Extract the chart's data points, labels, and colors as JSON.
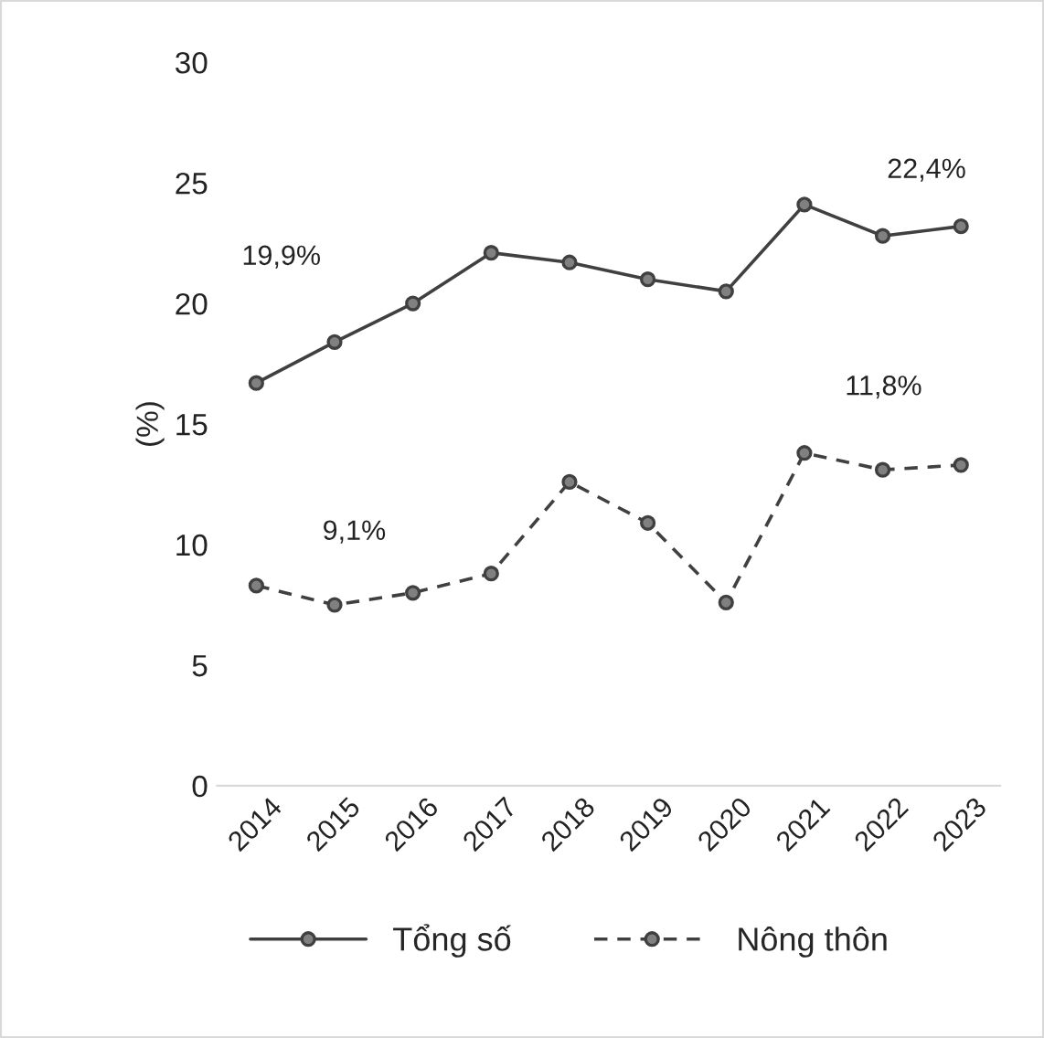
{
  "chart_data": {
    "type": "line",
    "ylabel": "(%)",
    "categories": [
      "2014",
      "2015",
      "2016",
      "2017",
      "2018",
      "2019",
      "2020",
      "2021",
      "2022",
      "2023"
    ],
    "series": [
      {
        "name": "Tổng số",
        "color": "#404040",
        "line_style": "solid",
        "values": [
          16.7,
          18.4,
          20.0,
          22.1,
          21.7,
          21.0,
          20.5,
          24.1,
          22.8,
          23.2
        ]
      },
      {
        "name": "Nông thôn",
        "color": "#404040",
        "line_style": "dashed",
        "values": [
          8.3,
          7.5,
          8.0,
          8.8,
          12.6,
          10.9,
          7.6,
          13.8,
          13.1,
          13.3
        ]
      }
    ],
    "ylim": [
      0,
      30
    ],
    "yticks": [
      0,
      5,
      10,
      15,
      20,
      25,
      30
    ],
    "annotations": [
      "19,9%",
      "22,4%",
      "9,1%",
      "11,8%"
    ],
    "marker": "circle",
    "grid": false,
    "legend": "bottom"
  }
}
